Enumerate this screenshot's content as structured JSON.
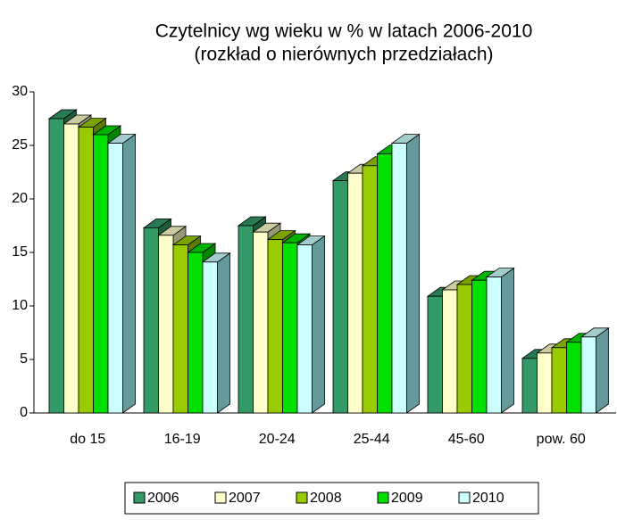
{
  "chart_data": {
    "type": "bar3d",
    "title": "Czytelnicy wg wieku w % w latach 2006-2010",
    "subtitle": "(rozkład o nierównych przedziałach)",
    "categories": [
      "do 15",
      "16-19",
      "20-24",
      "25-44",
      "45-60",
      "pow. 60"
    ],
    "series": [
      {
        "name": "2006",
        "color": "#339966",
        "values": [
          27.5,
          17.3,
          17.5,
          21.7,
          10.9,
          5.1
        ]
      },
      {
        "name": "2007",
        "color": "#ffffcc",
        "values": [
          27.0,
          16.6,
          16.9,
          22.4,
          11.5,
          5.6
        ]
      },
      {
        "name": "2008",
        "color": "#99cc00",
        "values": [
          26.7,
          15.7,
          16.2,
          23.1,
          12.0,
          6.1
        ]
      },
      {
        "name": "2009",
        "color": "#00e000",
        "values": [
          26.0,
          15.0,
          15.9,
          24.2,
          12.4,
          6.6
        ]
      },
      {
        "name": "2010",
        "color": "#ccffff",
        "values": [
          25.2,
          14.1,
          15.7,
          25.2,
          12.7,
          7.1
        ]
      }
    ],
    "ylim": [
      0,
      30
    ],
    "yticks": [
      0,
      5,
      10,
      15,
      20,
      25,
      30
    ],
    "legend": "bottom"
  }
}
